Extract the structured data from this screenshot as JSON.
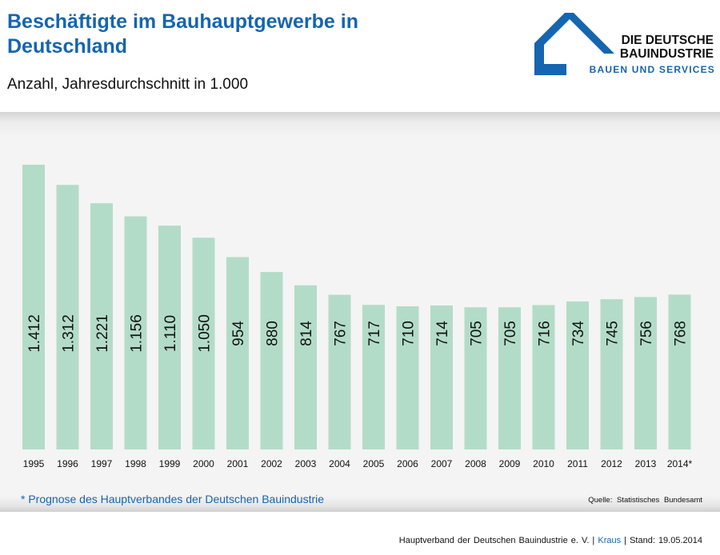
{
  "header": {
    "title": "Beschäftigte im Bauhauptgewerbe in Deutschland",
    "subtitle": "Anzahl, Jahresdurchschnitt in 1.000"
  },
  "logo": {
    "line1": "DIE DEUTSCHE",
    "line2": "BAUINDUSTRIE",
    "line3": "BAUEN UND SERVICES",
    "icon": "house-roof-icon",
    "color": "#1565b0"
  },
  "chart_data": {
    "type": "bar",
    "categories": [
      "1995",
      "1996",
      "1997",
      "1998",
      "1999",
      "2000",
      "2001",
      "2002",
      "2003",
      "2004",
      "2005",
      "2006",
      "2007",
      "2008",
      "2009",
      "2010",
      "2011",
      "2012",
      "2013",
      "2014*"
    ],
    "values": [
      1412,
      1312,
      1221,
      1156,
      1110,
      1050,
      954,
      880,
      814,
      767,
      717,
      710,
      714,
      705,
      705,
      716,
      734,
      745,
      756,
      768
    ],
    "labels": [
      "1.412",
      "1.312",
      "1.221",
      "1.156",
      "1.110",
      "1.050",
      "954",
      "880",
      "814",
      "767",
      "717",
      "710",
      "714",
      "705",
      "705",
      "716",
      "734",
      "745",
      "756",
      "768"
    ],
    "title": "Beschäftigte im Bauhauptgewerbe in Deutschland",
    "subtitle": "Anzahl, Jahresdurchschnitt in 1.000",
    "ylim": [
      0,
      1412
    ],
    "bar_color": "#b3dcc8",
    "grid": false
  },
  "footnote": "* Prognose des Hauptverbandes der Deutschen Bauindustrie",
  "source": "Quelle: Statistisches Bundesamt",
  "footer": {
    "org": "Hauptverband der Deutschen Bauindustrie e. V. |",
    "author": "Kraus",
    "stand": "| Stand: 19.05.2014"
  }
}
